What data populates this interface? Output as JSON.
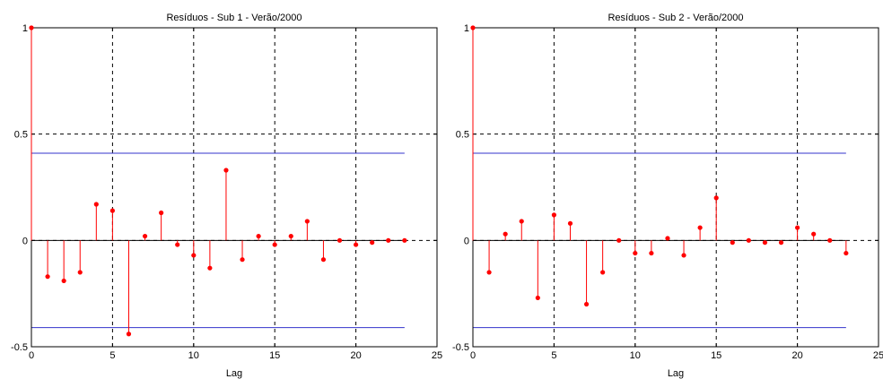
{
  "chart_data": [
    {
      "type": "stem",
      "title": "Resíduos - Sub 1 - Verão/2000",
      "xlabel": "Lag",
      "ylabel": "",
      "xlim": [
        0,
        25
      ],
      "ylim": [
        -0.5,
        1
      ],
      "xticks": [
        "0",
        "5",
        "10",
        "15",
        "20",
        "25"
      ],
      "yticks": [
        "-0.5",
        "0",
        "0.5",
        "1"
      ],
      "grid": "dashed at major ticks",
      "confidence_bounds": [
        0.41,
        -0.41
      ],
      "colors": {
        "stem": "#ff0000",
        "bounds": "#3333cc",
        "axes": "#000000"
      },
      "x": [
        0,
        1,
        2,
        3,
        4,
        5,
        6,
        7,
        8,
        9,
        10,
        11,
        12,
        13,
        14,
        15,
        16,
        17,
        18,
        19,
        20,
        21,
        22,
        23
      ],
      "values": [
        1.0,
        -0.17,
        -0.19,
        -0.15,
        0.17,
        0.14,
        -0.44,
        0.02,
        0.13,
        -0.02,
        -0.07,
        -0.13,
        0.33,
        -0.09,
        0.02,
        -0.02,
        0.02,
        0.09,
        -0.09,
        0.0,
        -0.02,
        -0.01,
        0.0,
        0.0
      ]
    },
    {
      "type": "stem",
      "title": "Resíduos - Sub 2 - Verão/2000",
      "xlabel": "Lag",
      "ylabel": "",
      "xlim": [
        0,
        25
      ],
      "ylim": [
        -0.5,
        1
      ],
      "xticks": [
        "0",
        "5",
        "10",
        "15",
        "20",
        "25"
      ],
      "yticks": [
        "-0.5",
        "0",
        "0.5",
        "1"
      ],
      "grid": "dashed at major ticks",
      "confidence_bounds": [
        0.41,
        -0.41
      ],
      "colors": {
        "stem": "#ff0000",
        "bounds": "#3333cc",
        "axes": "#000000"
      },
      "x": [
        0,
        1,
        2,
        3,
        4,
        5,
        6,
        7,
        8,
        9,
        10,
        11,
        12,
        13,
        14,
        15,
        16,
        17,
        18,
        19,
        20,
        21,
        22,
        23
      ],
      "values": [
        1.0,
        -0.15,
        0.03,
        0.09,
        -0.27,
        0.12,
        0.08,
        -0.3,
        -0.15,
        0.0,
        -0.06,
        -0.06,
        0.01,
        -0.07,
        0.06,
        0.2,
        -0.01,
        0.0,
        -0.01,
        -0.01,
        0.06,
        0.03,
        0.0,
        -0.06
      ]
    }
  ]
}
